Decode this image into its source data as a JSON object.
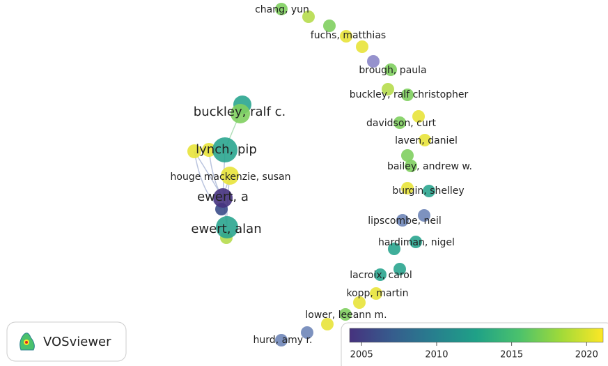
{
  "nodes": [
    {
      "label": "chang, yun",
      "major": false
    },
    {
      "label": "fuchs, matthias",
      "major": false
    },
    {
      "label": "brough, paula",
      "major": false
    },
    {
      "label": "buckley, ralf christopher",
      "major": false
    },
    {
      "label": "buckley, ralf c.",
      "major": true
    },
    {
      "label": "davidson, curt",
      "major": false
    },
    {
      "label": "laven, daniel",
      "major": false
    },
    {
      "label": "bailey, andrew w.",
      "major": false
    },
    {
      "label": "lynch, pip",
      "major": true
    },
    {
      "label": "houge mackenzie, susan",
      "major": false
    },
    {
      "label": "burgin, shelley",
      "major": false
    },
    {
      "label": "ewert, a",
      "major": true
    },
    {
      "label": "lipscombe, neil",
      "major": false
    },
    {
      "label": "ewert, alan",
      "major": true
    },
    {
      "label": "hardiman, nigel",
      "major": false
    },
    {
      "label": "lacroix, carol",
      "major": false
    },
    {
      "label": "kopp, martin",
      "major": false
    },
    {
      "label": "lower, leeann m.",
      "major": false
    },
    {
      "label": "hurd, amy r.",
      "major": false
    }
  ],
  "legend": {
    "colors": [
      "#46327e",
      "#365c8d",
      "#277f8e",
      "#1fa187",
      "#4ac16d",
      "#a0da39",
      "#fde725"
    ],
    "lim": [
      2004.2,
      2021.1
    ],
    "ticks": [
      2005,
      2010,
      2015,
      2020
    ]
  },
  "logo": {
    "text": "VOSviewer"
  }
}
